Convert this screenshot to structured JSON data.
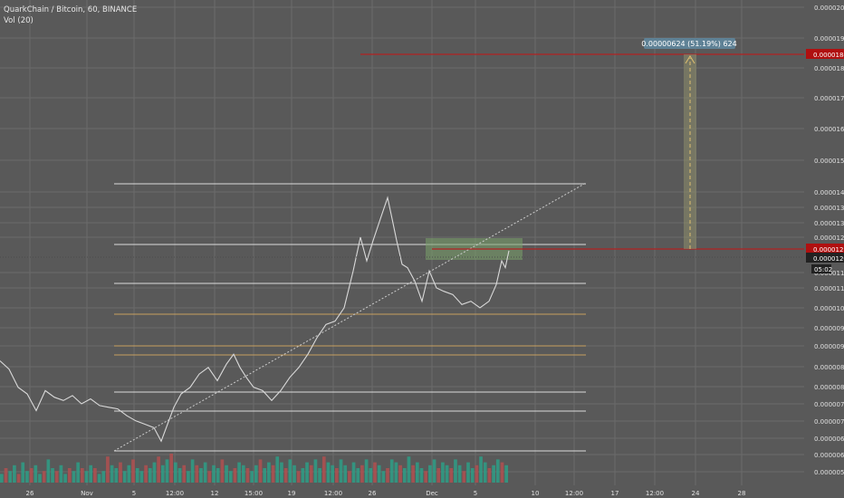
{
  "header": {
    "symbol_line": "QuarkChain / Bitcoin, 60, BINANCE",
    "volume_line": "Vol (20)"
  },
  "colors": {
    "background": "#595959",
    "grid": "#6a6a6a",
    "price_line": "#d9d9d9",
    "level_white": "#dcdcdc",
    "level_orange": "#c8a060",
    "red_line": "#b22222",
    "zone_fill": "#7aa36a",
    "measure_box": "#8a8a6a",
    "badge": "#5f8296",
    "vol_up": "#2e9e86",
    "vol_down": "#b05050"
  },
  "measure_label": "0.00000624 (51.19%) 624",
  "countdown": "05:02",
  "chart_data": {
    "type": "line",
    "title": "",
    "xlabel": "",
    "ylabel": "",
    "ylim": [
      5.3e-06,
      2.02e-05
    ],
    "y_axis_ticks": [
      "0.00002000",
      "0.00001900",
      "0.00001800",
      "0.00001700",
      "0.00001600",
      "0.00001500",
      "0.00001400",
      "0.00001350",
      "0.00001300",
      "0.00001250",
      "0.00001150",
      "0.00001100",
      "0.00001040",
      "0.00000980",
      "0.00000920",
      "0.00000860",
      "0.00000800",
      "0.00000750",
      "0.00000700",
      "0.00000650",
      "0.00000600",
      "0.00000550"
    ],
    "x_axis_ticks": [
      {
        "label": "26",
        "x": 33
      },
      {
        "label": "Nov",
        "x": 96
      },
      {
        "label": "5",
        "x": 148
      },
      {
        "label": "12:00",
        "x": 193
      },
      {
        "label": "12",
        "x": 237
      },
      {
        "label": "15:00",
        "x": 280
      },
      {
        "label": "19",
        "x": 322
      },
      {
        "label": "12:00",
        "x": 368
      },
      {
        "label": "26",
        "x": 411
      },
      {
        "label": "Dec",
        "x": 477
      },
      {
        "label": "5",
        "x": 525
      },
      {
        "label": "10",
        "x": 591
      },
      {
        "label": "12:00",
        "x": 634
      },
      {
        "label": "17",
        "x": 679
      },
      {
        "label": "12:00",
        "x": 723
      },
      {
        "label": "24",
        "x": 768
      },
      {
        "label": "28",
        "x": 819
      }
    ],
    "price_labels": [
      {
        "value": "0.00001844",
        "style": "red"
      },
      {
        "value": "0.00001219",
        "style": "red"
      },
      {
        "value": "0.00001204",
        "style": "dark"
      }
    ],
    "price_series": [
      [
        0,
        8.8e-06
      ],
      [
        10,
        8.55e-06
      ],
      [
        20,
        8e-06
      ],
      [
        30,
        7.8e-06
      ],
      [
        40,
        7.3e-06
      ],
      [
        50,
        7.9e-06
      ],
      [
        60,
        7.7e-06
      ],
      [
        70,
        7.6e-06
      ],
      [
        80,
        7.75e-06
      ],
      [
        90,
        7.5e-06
      ],
      [
        100,
        7.65e-06
      ],
      [
        110,
        7.45e-06
      ],
      [
        120,
        7.4e-06
      ],
      [
        130,
        7.35e-06
      ],
      [
        140,
        7.15e-06
      ],
      [
        150,
        7e-06
      ],
      [
        160,
        6.9e-06
      ],
      [
        170,
        6.8e-06
      ],
      [
        178,
        6.4e-06
      ],
      [
        185,
        6.9e-06
      ],
      [
        192,
        7.4e-06
      ],
      [
        200,
        7.8e-06
      ],
      [
        210,
        8e-06
      ],
      [
        220,
        8.4e-06
      ],
      [
        230,
        8.6e-06
      ],
      [
        240,
        8.2e-06
      ],
      [
        250,
        8.7e-06
      ],
      [
        258,
        9e-06
      ],
      [
        265,
        8.6e-06
      ],
      [
        272,
        8.3e-06
      ],
      [
        280,
        8e-06
      ],
      [
        290,
        7.9e-06
      ],
      [
        300,
        7.6e-06
      ],
      [
        310,
        7.9e-06
      ],
      [
        320,
        8.3e-06
      ],
      [
        330,
        8.6e-06
      ],
      [
        340,
        9e-06
      ],
      [
        350,
        9.5e-06
      ],
      [
        360,
        9.9e-06
      ],
      [
        370,
        1e-05
      ],
      [
        380,
        1.04e-05
      ],
      [
        390,
        1.15e-05
      ],
      [
        398,
        1.25e-05
      ],
      [
        405,
        1.18e-05
      ],
      [
        412,
        1.24e-05
      ],
      [
        420,
        1.31e-05
      ],
      [
        428,
        1.38e-05
      ],
      [
        433,
        1.31e-05
      ],
      [
        438,
        1.24e-05
      ],
      [
        444,
        1.17e-05
      ],
      [
        450,
        1.16e-05
      ],
      [
        458,
        1.12e-05
      ],
      [
        466,
        1.06e-05
      ],
      [
        474,
        1.15e-05
      ],
      [
        482,
        1.1e-05
      ],
      [
        490,
        1.09e-05
      ],
      [
        500,
        1.08e-05
      ],
      [
        510,
        1.05e-05
      ],
      [
        520,
        1.06e-05
      ],
      [
        530,
        1.04e-05
      ],
      [
        540,
        1.06e-05
      ],
      [
        548,
        1.11e-05
      ],
      [
        554,
        1.18e-05
      ],
      [
        558,
        1.16e-05
      ],
      [
        562,
        1.21e-05
      ]
    ],
    "volume": [
      3,
      5,
      4,
      6,
      3,
      7,
      4,
      5,
      6,
      3,
      4,
      8,
      5,
      4,
      6,
      3,
      5,
      4,
      7,
      5,
      4,
      6,
      5,
      3,
      4,
      9,
      6,
      5,
      7,
      4,
      6,
      8,
      5,
      4,
      6,
      5,
      7,
      9,
      6,
      8,
      10,
      7,
      5,
      6,
      4,
      8,
      6,
      5,
      7,
      4,
      6,
      5,
      8,
      6,
      4,
      5,
      7,
      6,
      5,
      4,
      6,
      8,
      5,
      7,
      6,
      9,
      7,
      5,
      8,
      6,
      4,
      5,
      7,
      6,
      8,
      5,
      9,
      7,
      6,
      5,
      8,
      6,
      4,
      7,
      5,
      6,
      8,
      5,
      7,
      6,
      4,
      5,
      8,
      7,
      6,
      5,
      9,
      6,
      7,
      5,
      4,
      6,
      8,
      5,
      7,
      6,
      5,
      8,
      6,
      4,
      7,
      5,
      6,
      9,
      7,
      5,
      6,
      8,
      7,
      6
    ]
  }
}
